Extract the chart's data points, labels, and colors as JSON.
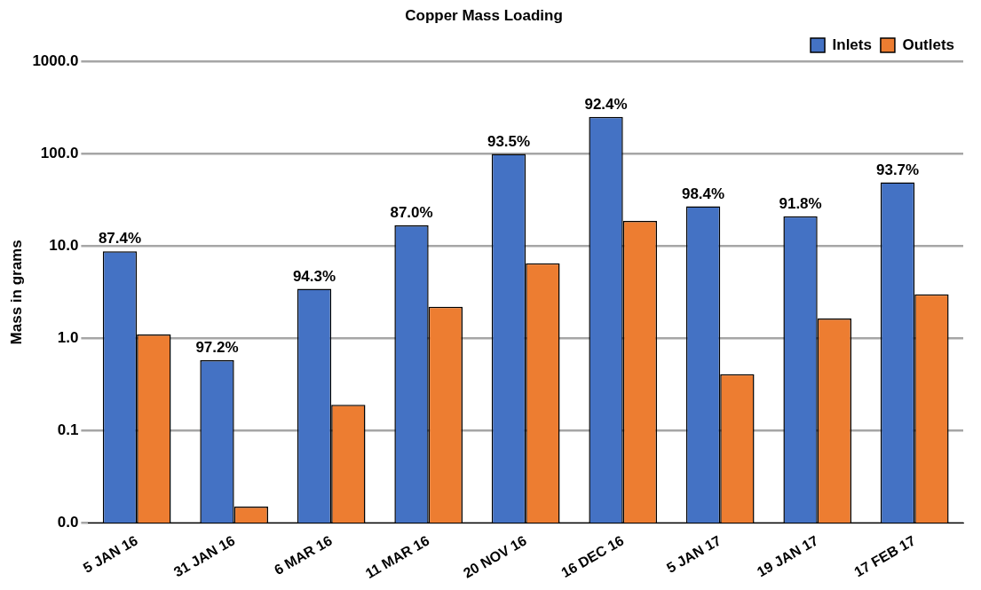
{
  "chart_data": {
    "type": "bar",
    "title": "Copper Mass Loading",
    "ylabel": "Mass in grams",
    "categories": [
      "5 JAN 16",
      "31 JAN 16",
      "6 MAR 16",
      "11 MAR 16",
      "20 NOV 16",
      "16 DEC 16",
      "5 JAN 17",
      "19 JAN 17",
      "17 FEB 17"
    ],
    "series": [
      {
        "name": "Inlets",
        "color": "#4472c4",
        "values": [
          8.8,
          0.58,
          3.45,
          16.8,
          100,
          251,
          27,
          21,
          49
        ]
      },
      {
        "name": "Outlets",
        "color": "#ed7d31",
        "values": [
          1.1,
          0.015,
          0.19,
          2.2,
          6.5,
          18.7,
          0.41,
          1.64,
          3.0
        ]
      }
    ],
    "log": "y",
    "ylim": [
      0.01,
      1000
    ],
    "yticks": [
      {
        "value": 0.01,
        "label": "0.0"
      },
      {
        "value": 0.1,
        "label": "0.1"
      },
      {
        "value": 1,
        "label": "1.0"
      },
      {
        "value": 10,
        "label": "10.0"
      },
      {
        "value": 100,
        "label": "100.0"
      },
      {
        "value": 1000,
        "label": "1000.0"
      }
    ],
    "grid": "y",
    "legend": "top right",
    "annotations": [
      {
        "text": "87.4%",
        "x": "5 JAN 16",
        "y": 8.8
      },
      {
        "text": "97.2%",
        "x": "31 JAN 16",
        "y": 0.58
      },
      {
        "text": "94.3%",
        "x": "6 MAR 16",
        "y": 3.45
      },
      {
        "text": "87.0%",
        "x": "11 MAR 16",
        "y": 16.8
      },
      {
        "text": "93.5%",
        "x": "20 NOV 16",
        "y": 100
      },
      {
        "text": "92.4%",
        "x": "16 DEC 16",
        "y": 251
      },
      {
        "text": "98.4%",
        "x": "5 JAN 17",
        "y": 27
      },
      {
        "text": "91.8%",
        "x": "19 JAN 17",
        "y": 21
      },
      {
        "text": "93.7%",
        "x": "17 FEB 17",
        "y": 49
      }
    ]
  }
}
